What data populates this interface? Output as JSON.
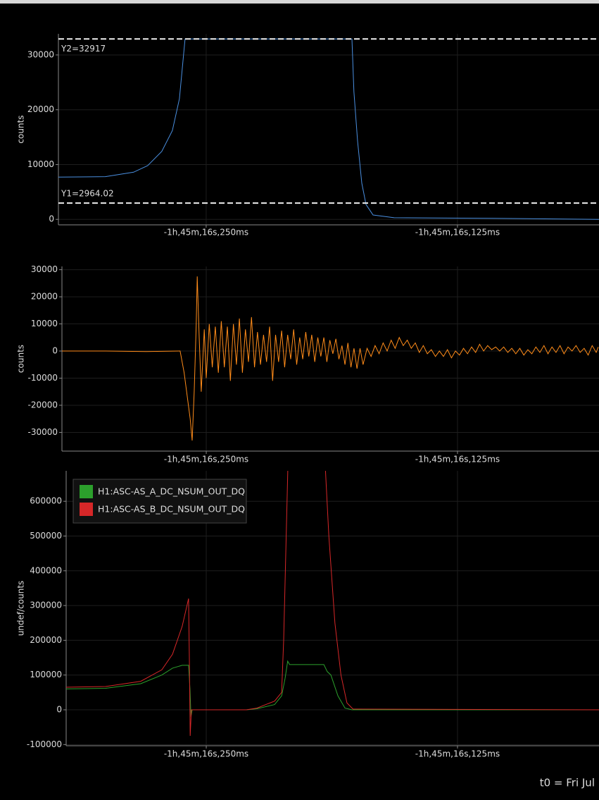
{
  "chart_data": [
    {
      "type": "line",
      "ylabel": "counts",
      "xlim": [
        -323.5,
        -54.6
      ],
      "xticks": [
        {
          "value": -250,
          "label": "-1h,45m,16s,250ms"
        },
        {
          "value": -125,
          "label": "-1h,45m,16s,125ms"
        }
      ],
      "ylim": [
        -1000,
        33850
      ],
      "yticks": [
        0,
        10000,
        20000,
        30000
      ],
      "grid": true,
      "cursors": [
        {
          "label": "Y2=32917",
          "value": 32917
        },
        {
          "label": "Y1=2964.02",
          "value": 2964.02
        }
      ],
      "series": [
        {
          "color": "#4a8fe0",
          "x": [
            -323.5,
            -300.1,
            -286.1,
            -279.1,
            -272.1,
            -266.8,
            -263.3,
            -260.5,
            -177.5,
            -176.5,
            -174.7,
            -172.6,
            -170.5,
            -167.0,
            -156.5,
            -107.5,
            -54.6
          ],
          "values": [
            7700,
            7800,
            8600,
            9800,
            12400,
            16200,
            22000,
            32917,
            32917,
            23300,
            14300,
            6600,
            2700,
            800,
            300,
            200,
            0
          ]
        }
      ]
    },
    {
      "type": "line",
      "ylabel": "counts",
      "xlim": [
        -321.8,
        -54.6
      ],
      "xticks": [
        {
          "value": -250,
          "label": "-1h,45m,16s,250ms"
        },
        {
          "value": -125,
          "label": "-1h,45m,16s,125ms"
        }
      ],
      "ylim": [
        -36900,
        31200
      ],
      "yticks": [
        -30000,
        -20000,
        -10000,
        0,
        10000,
        20000,
        30000
      ],
      "grid": true,
      "series": [
        {
          "color": "#ff8c1a",
          "x": [
            -321.8,
            -300,
            -280,
            -263,
            -261,
            -258,
            -257,
            -256,
            -255,
            -254.5,
            -253.5,
            -252.5,
            -251,
            -250,
            -248.5,
            -247,
            -245.5,
            -244,
            -242.5,
            -241,
            -239.5,
            -238,
            -236.5,
            -235,
            -233.5,
            -232,
            -230.5,
            -229,
            -227.5,
            -226,
            -224.5,
            -223,
            -221.5,
            -220,
            -218.5,
            -217,
            -215.5,
            -214,
            -212.5,
            -211,
            -209.5,
            -208,
            -206.5,
            -205,
            -203.5,
            -202,
            -200.5,
            -199,
            -197.5,
            -196,
            -194.5,
            -193,
            -191.5,
            -190,
            -188.5,
            -187,
            -185.5,
            -184,
            -182.5,
            -181,
            -179.5,
            -178,
            -176.5,
            -175,
            -173.5,
            -172,
            -170,
            -168,
            -166,
            -164,
            -162,
            -160,
            -158,
            -156,
            -154,
            -152,
            -150,
            -148,
            -146,
            -144,
            -142,
            -140,
            -138,
            -136,
            -134,
            -132,
            -130,
            -128,
            -126,
            -124,
            -122,
            -120,
            -118,
            -116,
            -114,
            -112,
            -110,
            -108,
            -106,
            -104,
            -102,
            -100,
            -98,
            -96,
            -94,
            -92,
            -90,
            -88,
            -86,
            -84,
            -82,
            -80,
            -78,
            -76,
            -74,
            -72,
            -70,
            -68,
            -66,
            -64,
            -62,
            -60,
            -58,
            -56,
            -55
          ],
          "values": [
            0,
            0,
            -200,
            0,
            -8000,
            -25000,
            -33000,
            -15000,
            10000,
            27500,
            5000,
            -15000,
            8000,
            -10000,
            10000,
            -6000,
            9000,
            -8000,
            11000,
            -6000,
            9000,
            -11000,
            10000,
            -5000,
            12000,
            -8000,
            8000,
            -4000,
            12500,
            -6000,
            7000,
            -5000,
            6000,
            -4000,
            9000,
            -11000,
            6000,
            -4000,
            7500,
            -6000,
            6000,
            -3000,
            8000,
            -5000,
            5000,
            -3000,
            7000,
            -2000,
            6000,
            -4000,
            5000,
            -2000,
            5000,
            -4000,
            4000,
            -1000,
            4500,
            -3000,
            2000,
            -5000,
            3000,
            -6000,
            1000,
            -6500,
            1000,
            -5000,
            1000,
            -2000,
            2000,
            -1000,
            3000,
            0,
            4000,
            1000,
            5000,
            2000,
            4000,
            1000,
            3000,
            -500,
            2000,
            -1000,
            500,
            -2000,
            0,
            -2000,
            500,
            -2500,
            0,
            -1500,
            1000,
            -1000,
            1500,
            -500,
            2500,
            0,
            2000,
            500,
            1500,
            0,
            1500,
            -500,
            1000,
            -1000,
            1000,
            -1500,
            500,
            -1000,
            1500,
            -500,
            2000,
            -1000,
            1500,
            -500,
            2000,
            -1000,
            1500,
            0,
            2000,
            -500,
            1000,
            -1500,
            2000,
            -500,
            1500
          ]
        }
      ]
    },
    {
      "type": "line",
      "ylabel": "undef/counts",
      "legend": "upper left",
      "xlim": [
        -319.7,
        -54.6
      ],
      "xticks": [
        {
          "value": -250,
          "label": "-1h,45m,16s,250ms"
        },
        {
          "value": -125,
          "label": "-1h,45m,16s,125ms"
        }
      ],
      "ylim": [
        -103400,
        687600
      ],
      "yticks": [
        -100000,
        0,
        100000,
        200000,
        300000,
        400000,
        500000,
        600000
      ],
      "grid": true,
      "series": [
        {
          "name": "H1:ASC-AS_A_DC_NSUM_OUT_DQ",
          "color": "#2ca02c",
          "x": [
            -319.7,
            -300.1,
            -282.6,
            -272.1,
            -266.8,
            -262,
            -258.8,
            -258.1,
            -257.6,
            -257,
            -230,
            -224.8,
            -216,
            -212.5,
            -210.8,
            -209.5,
            -208.5,
            -191.5,
            -189.8,
            -188,
            -184.5,
            -181,
            -177.5,
            -54.6
          ],
          "values": [
            60000,
            62000,
            75000,
            100000,
            120000,
            128000,
            128000,
            60000,
            -20000,
            0,
            0,
            3000,
            15000,
            40000,
            90000,
            140000,
            130000,
            130000,
            110000,
            100000,
            40000,
            5000,
            0,
            0
          ]
        },
        {
          "name": "H1:ASC-AS_B_DC_NSUM_OUT_DQ",
          "color": "#d62728",
          "x": [
            -319.7,
            -300.1,
            -282.6,
            -272.1,
            -266.8,
            -262,
            -258.8,
            -258.4,
            -258,
            -257.4,
            -230,
            -224.8,
            -216,
            -212.5,
            -211.5,
            -209.4,
            -190.8,
            -189,
            -186,
            -183,
            -180,
            -177,
            -54.6
          ],
          "values": [
            65000,
            67000,
            82000,
            115000,
            160000,
            240000,
            320000,
            150000,
            -75000,
            0,
            0,
            5000,
            25000,
            50000,
            200000,
            700000,
            700000,
            500000,
            250000,
            100000,
            20000,
            2000,
            0
          ]
        }
      ]
    }
  ],
  "footer": "t0 = Fri Jul"
}
